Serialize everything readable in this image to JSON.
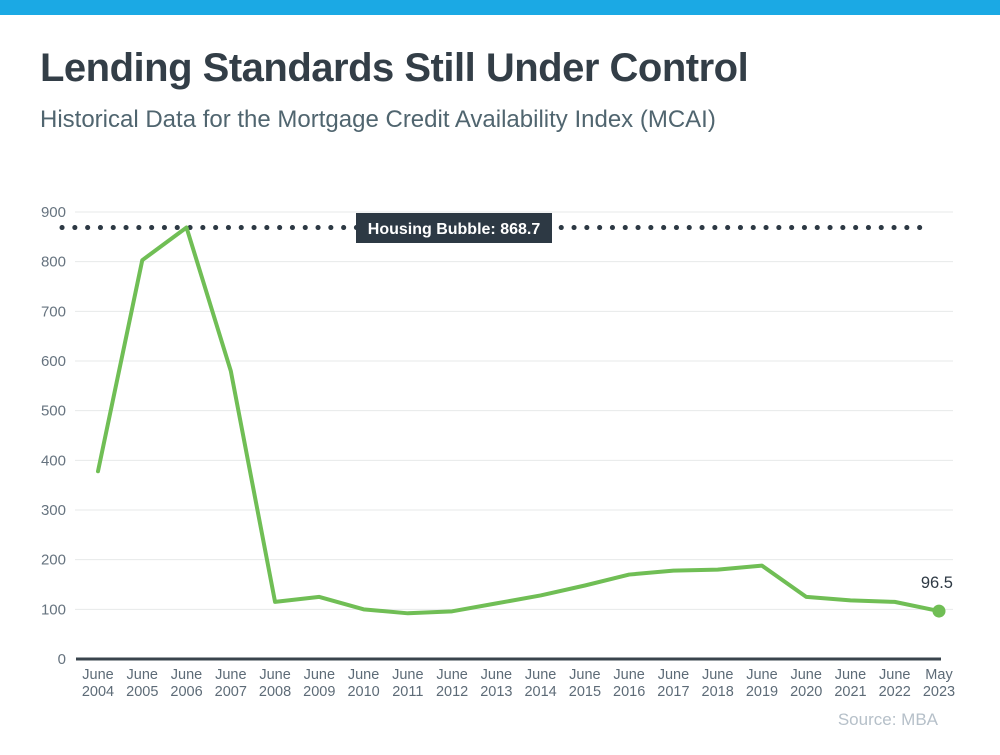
{
  "page": {
    "title": "Lending Standards Still Under Control",
    "subtitle": "Historical Data for the Mortgage Credit Availability Index (MCAI)",
    "source": "Source: MBA",
    "accent_color": "#1BA9E4"
  },
  "chart_data": {
    "type": "line",
    "title": "Lending Standards Still Under Control",
    "subtitle": "Historical Data for the Mortgage Credit Availability Index (MCAI)",
    "categories": [
      "June 2004",
      "June 2005",
      "June 2006",
      "June 2007",
      "June 2008",
      "June 2009",
      "June 2010",
      "June 2011",
      "June 2012",
      "June 2013",
      "June 2014",
      "June 2015",
      "June 2016",
      "June 2017",
      "June 2018",
      "June 2019",
      "June 2020",
      "June 2021",
      "June 2022",
      "May 2023"
    ],
    "values": [
      378,
      803,
      868.7,
      580,
      115,
      125,
      100,
      92,
      96,
      112,
      128,
      148,
      170,
      178,
      180,
      188,
      125,
      118,
      115,
      96.5
    ],
    "ylim": [
      0,
      900
    ],
    "ytick_step": 100,
    "yticks": [
      0,
      100,
      200,
      300,
      400,
      500,
      600,
      700,
      800,
      900
    ],
    "grid": true,
    "legend": "none",
    "line_color": "#70BE55",
    "grid_color": "#E7E9EA",
    "axis_line_color": "#39444D",
    "tick_label_color": "#66737F",
    "x_label_color": "#5D6B77",
    "annotations": {
      "reference_line": {
        "label": "Housing Bubble: 868.7",
        "value": 868.7,
        "style": "dotted",
        "color": "#2D3944",
        "label_text_color": "#FFFFFF"
      },
      "last_point": {
        "label": "96.5",
        "value": 96.5,
        "marker": "filled-circle",
        "label_color": "#2E3944"
      }
    }
  }
}
